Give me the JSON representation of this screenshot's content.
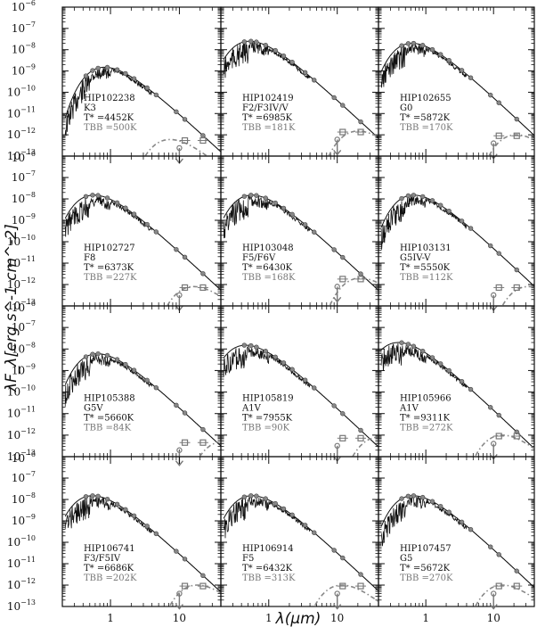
{
  "chart_data": {
    "type": "line",
    "layout": "grid 4 rows x 3 columns",
    "xlabel": "λ(μm)",
    "ylabel": "λF_λ[erg s^-1 cm^-2]",
    "xscale": "log",
    "yscale": "log",
    "xlim": [
      0.2,
      40
    ],
    "ylim": [
      1e-13,
      1e-06
    ],
    "xticks": [
      "1",
      "10"
    ],
    "yticks": [
      "10^-6",
      "10^-7",
      "10^-8",
      "10^-9",
      "10^-10",
      "10^-11",
      "10^-12",
      "10^-13"
    ],
    "panels": [
      {
        "star": "HIP102238",
        "spectral_type": "K3",
        "t_star": "T* =4452K",
        "t_bb": "TBB =500K",
        "t_star_k": 4452,
        "t_bb_k": 500,
        "peak_flux": 1.5e-09,
        "bb_peak_flux": 6e-13
      },
      {
        "star": "HIP102419",
        "spectral_type": "F2/F3IV/V",
        "t_star": "T* =6985K",
        "t_bb": "TBB =181K",
        "t_star_k": 6985,
        "t_bb_k": 181,
        "peak_flux": 2.5e-08,
        "bb_peak_flux": 1.5e-12
      },
      {
        "star": "HIP102655",
        "spectral_type": "G0",
        "t_star": "T* =5872K",
        "t_bb": "TBB =170K",
        "t_star_k": 5872,
        "t_bb_k": 170,
        "peak_flux": 2e-08,
        "bb_peak_flux": 1e-12
      },
      {
        "star": "HIP102727",
        "spectral_type": "F8",
        "t_star": "T* =6373K",
        "t_bb": "TBB =227K",
        "t_star_k": 6373,
        "t_bb_k": 227,
        "peak_flux": 1.5e-08,
        "bb_peak_flux": 8e-13
      },
      {
        "star": "HIP103048",
        "spectral_type": "F5/F6V",
        "t_star": "T* =6430K",
        "t_bb": "TBB =168K",
        "t_star_k": 6430,
        "t_bb_k": 168,
        "peak_flux": 1.5e-08,
        "bb_peak_flux": 2e-12
      },
      {
        "star": "HIP103131",
        "spectral_type": "G5IV-V",
        "t_star": "T* =5550K",
        "t_bb": "TBB =112K",
        "t_star_k": 5550,
        "t_bb_k": 112,
        "peak_flux": 1.5e-08,
        "bb_peak_flux": 8e-13
      },
      {
        "star": "HIP105388",
        "spectral_type": "G5V",
        "t_star": "T* =5660K",
        "t_bb": "TBB =84K",
        "t_star_k": 5660,
        "t_bb_k": 84,
        "peak_flux": 6e-09,
        "bb_peak_flux": 5e-13
      },
      {
        "star": "HIP105819",
        "spectral_type": "A1V",
        "t_star": "T* =7955K",
        "t_bb": "TBB =90K",
        "t_star_k": 7955,
        "t_bb_k": 90,
        "peak_flux": 1.5e-08,
        "bb_peak_flux": 8e-13
      },
      {
        "star": "HIP105966",
        "spectral_type": "A1V",
        "t_star": "T* =9311K",
        "t_bb": "TBB =272K",
        "t_star_k": 9311,
        "t_bb_k": 272,
        "peak_flux": 2e-08,
        "bb_peak_flux": 1e-12
      },
      {
        "star": "HIP106741",
        "spectral_type": "F3/F5IV",
        "t_star": "T* =6686K",
        "t_bb": "TBB =202K",
        "t_star_k": 6686,
        "t_bb_k": 202,
        "peak_flux": 1.5e-08,
        "bb_peak_flux": 1e-12
      },
      {
        "star": "HIP106914",
        "spectral_type": "F5",
        "t_star": "T* =6432K",
        "t_bb": "TBB =313K",
        "t_star_k": 6432,
        "t_bb_k": 313,
        "peak_flux": 1.5e-08,
        "bb_peak_flux": 1e-12
      },
      {
        "star": "HIP107457",
        "spectral_type": "G5",
        "t_star": "T* =5672K",
        "t_bb": "TBB =270K",
        "t_star_k": 5672,
        "t_bb_k": 270,
        "peak_flux": 1.5e-08,
        "bb_peak_flux": 1e-12
      }
    ]
  }
}
